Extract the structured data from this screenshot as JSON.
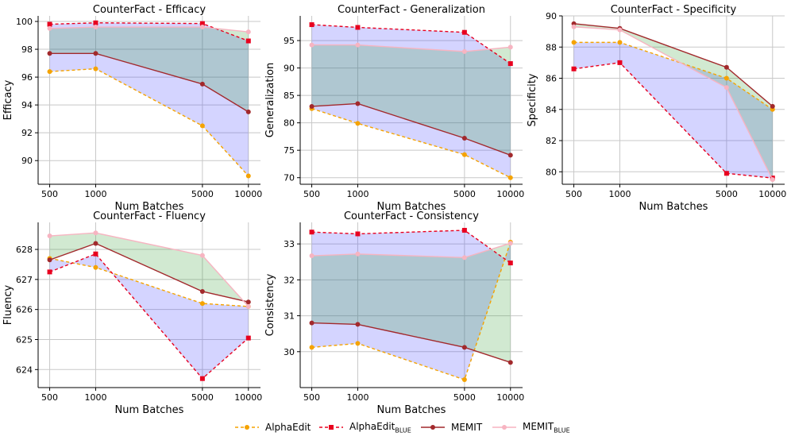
{
  "figure": {
    "legend": [
      {
        "label": "AlphaEdit",
        "sub": "",
        "color": "#f5a300",
        "dash": true,
        "marker": "circle"
      },
      {
        "label": "AlphaEdit",
        "sub": "BLUE",
        "color": "#e8001f",
        "dash": true,
        "marker": "square"
      },
      {
        "label": "MEMIT",
        "sub": "",
        "color": "#a2292c",
        "dash": false,
        "marker": "circle"
      },
      {
        "label": "MEMIT",
        "sub": "BLUE",
        "color": "#f7b4c1",
        "dash": false,
        "marker": "circle"
      }
    ]
  },
  "chart_data": [
    {
      "type": "line",
      "title": "CounterFact - Efficacy",
      "xlabel": "Num Batches",
      "ylabel": "Efficacy",
      "x": [
        500,
        1000,
        5000,
        10000
      ],
      "xticks": [
        "500",
        "1000",
        "5000",
        "10000"
      ],
      "ylim": [
        88.3,
        100.4
      ],
      "yticks": [
        90,
        92,
        94,
        96,
        98,
        100
      ],
      "series": [
        {
          "name": "AlphaEdit",
          "values": [
            96.4,
            96.6,
            92.5,
            88.9
          ]
        },
        {
          "name": "AlphaEdit_BLUE",
          "values": [
            99.8,
            99.9,
            99.85,
            98.6
          ]
        },
        {
          "name": "MEMIT",
          "values": [
            97.7,
            97.7,
            95.5,
            93.5
          ]
        },
        {
          "name": "MEMIT_BLUE",
          "values": [
            99.5,
            99.6,
            99.6,
            99.25
          ]
        }
      ]
    },
    {
      "type": "line",
      "title": "CounterFact - Generalization",
      "xlabel": "Num Batches",
      "ylabel": "Generalization",
      "x": [
        500,
        1000,
        5000,
        10000
      ],
      "xticks": [
        "500",
        "1000",
        "5000",
        "10000"
      ],
      "ylim": [
        68.8,
        99.5
      ],
      "yticks": [
        70,
        75,
        80,
        85,
        90,
        95
      ],
      "series": [
        {
          "name": "AlphaEdit",
          "values": [
            82.6,
            79.9,
            74.2,
            70.0
          ]
        },
        {
          "name": "AlphaEdit_BLUE",
          "values": [
            97.9,
            97.4,
            96.5,
            90.8
          ]
        },
        {
          "name": "MEMIT",
          "values": [
            83.0,
            83.5,
            77.2,
            74.1
          ]
        },
        {
          "name": "MEMIT_BLUE",
          "values": [
            94.2,
            94.2,
            93.0,
            93.8
          ]
        }
      ]
    },
    {
      "type": "line",
      "title": "CounterFact - Specificity",
      "xlabel": "Num Batches",
      "ylabel": "Specificity",
      "x": [
        500,
        1000,
        5000,
        10000
      ],
      "xticks": [
        "500",
        "1000",
        "5000",
        "10000"
      ],
      "ylim": [
        79.2,
        90.0
      ],
      "yticks": [
        80,
        82,
        84,
        86,
        88,
        90
      ],
      "series": [
        {
          "name": "AlphaEdit",
          "values": [
            88.3,
            88.3,
            86.0,
            84.0
          ]
        },
        {
          "name": "AlphaEdit_BLUE",
          "values": [
            86.6,
            87.0,
            79.9,
            79.6
          ]
        },
        {
          "name": "MEMIT",
          "values": [
            89.5,
            89.2,
            86.7,
            84.2
          ]
        },
        {
          "name": "MEMIT_BLUE",
          "values": [
            89.3,
            89.1,
            85.4,
            79.5
          ]
        }
      ]
    },
    {
      "type": "line",
      "title": "CounterFact - Fluency",
      "xlabel": "Num Batches",
      "ylabel": "Fluency",
      "x": [
        500,
        1000,
        5000,
        10000
      ],
      "xticks": [
        "500",
        "1000",
        "5000",
        "10000"
      ],
      "ylim": [
        623.4,
        628.9
      ],
      "yticks": [
        624,
        625,
        626,
        627,
        628
      ],
      "series": [
        {
          "name": "AlphaEdit",
          "values": [
            627.7,
            627.4,
            626.2,
            626.1
          ]
        },
        {
          "name": "AlphaEdit_BLUE",
          "values": [
            627.25,
            627.85,
            623.7,
            625.05
          ]
        },
        {
          "name": "MEMIT",
          "values": [
            627.65,
            628.2,
            626.6,
            626.25
          ]
        },
        {
          "name": "MEMIT_BLUE",
          "values": [
            628.45,
            628.55,
            627.8,
            626.1
          ]
        }
      ]
    },
    {
      "type": "line",
      "title": "CounterFact - Consistency",
      "xlabel": "Num Batches",
      "ylabel": "Consistency",
      "x": [
        500,
        1000,
        5000,
        10000
      ],
      "xticks": [
        "500",
        "1000",
        "5000",
        "10000"
      ],
      "ylim": [
        29.0,
        33.6
      ],
      "yticks": [
        30,
        31,
        32,
        33
      ],
      "series": [
        {
          "name": "AlphaEdit",
          "values": [
            30.12,
            30.23,
            29.22,
            33.05
          ]
        },
        {
          "name": "AlphaEdit_BLUE",
          "values": [
            33.33,
            33.28,
            33.38,
            32.47
          ]
        },
        {
          "name": "MEMIT",
          "values": [
            30.8,
            30.76,
            30.12,
            29.7
          ]
        },
        {
          "name": "MEMIT_BLUE",
          "values": [
            32.67,
            32.72,
            32.62,
            33.02
          ]
        }
      ]
    }
  ]
}
